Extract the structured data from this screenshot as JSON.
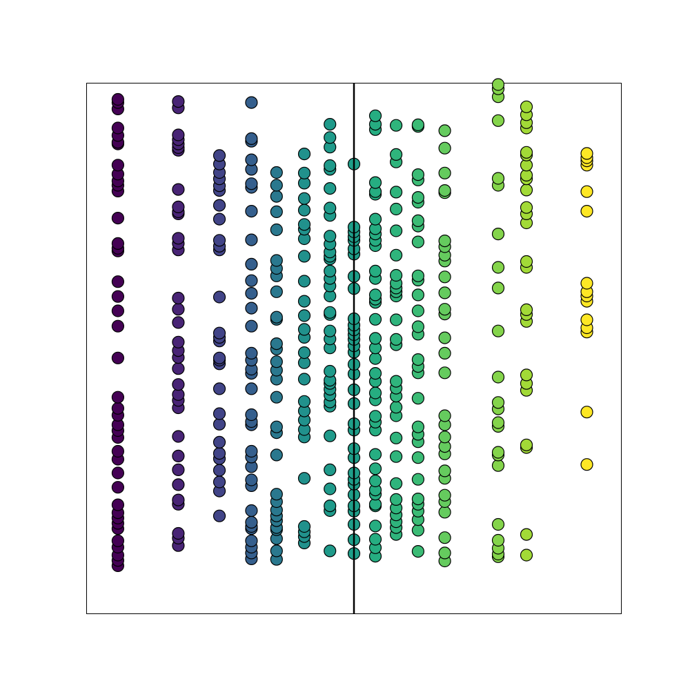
{
  "chart_data": {
    "type": "scatter",
    "title": "",
    "xlabel": "",
    "ylabel": "",
    "xticks": "none",
    "yticks": "none",
    "grid": false,
    "legend": "none",
    "xlim": [
      0,
      100
    ],
    "ylim": [
      0,
      100
    ],
    "colormap": "viridis",
    "vertical_line": {
      "x": 50,
      "color": "#000000"
    },
    "columns": [
      {
        "x": 5.8,
        "y": [
          9.0,
          10.0,
          11.0,
          12.5,
          13.7,
          16.0,
          17.0,
          18.0,
          19.0,
          20.5,
          23.8,
          26.5,
          29.1,
          30.6,
          33.2,
          34.5,
          35.6,
          37.4,
          38.7,
          40.8,
          48.2,
          54.2,
          57.1,
          59.8,
          62.6,
          68.4,
          68.9,
          69.8,
          74.6,
          79.7,
          80.8,
          81.6,
          82.9,
          84.6,
          88.6,
          88.9,
          90.2,
          91.6,
          95.2,
          96.4,
          97.0
        ],
        "color": "#440154"
      },
      {
        "x": 17.1,
        "y": [
          12.8,
          14.2,
          15.1,
          20.6,
          21.4,
          24.3,
          27.1,
          29.7,
          33.4,
          38.8,
          40.2,
          41.3,
          43.2,
          46.2,
          48.3,
          49.6,
          51.2,
          54.9,
          57.4,
          59.5,
          68.6,
          69.8,
          70.8,
          75.4,
          75.8,
          76.7,
          80.0,
          87.4,
          87.9,
          88.6,
          89.4,
          90.3,
          95.4,
          96.6
        ],
        "color": "#482475"
      },
      {
        "x": 24.8,
        "y": [
          18.4,
          23.1,
          24.8,
          27.0,
          29.2,
          30.2,
          32.3,
          35.7,
          37.7,
          42.4,
          47.1,
          47.8,
          48.2,
          51.4,
          52.1,
          52.9,
          59.7,
          68.6,
          69.3,
          70.4,
          74.4,
          77.0,
          79.8,
          80.7,
          82.0,
          83.2,
          84.8,
          86.4
        ],
        "color": "#414487"
      },
      {
        "x": 30.8,
        "y": [
          10.3,
          11.4,
          12.5,
          13.7,
          16.0,
          16.4,
          17.2,
          19.4,
          24.1,
          25.2,
          27.7,
          29.5,
          30.6,
          35.6,
          36.2,
          37.5,
          42.4,
          45.3,
          46.1,
          47.8,
          49.1,
          54.2,
          57.6,
          60.4,
          62.8,
          65.9,
          70.5,
          75.9,
          80.4,
          81.1,
          83.8,
          85.6,
          89.1,
          89.6,
          96.4
        ],
        "color": "#355f8d"
      },
      {
        "x": 35.5,
        "y": [
          10.2,
          11.8,
          14.1,
          15.8,
          16.2,
          17.5,
          18.4,
          19.5,
          21.1,
          22.5,
          29.9,
          34.1,
          35.2,
          40.8,
          44.2,
          45.9,
          47.5,
          49.9,
          50.9,
          55.5,
          55.9,
          60.7,
          63.7,
          65.1,
          66.6,
          72.4,
          75.8,
          78.7,
          80.8,
          83.2
        ],
        "color": "#2a788e"
      },
      {
        "x": 40.7,
        "y": [
          13.3,
          14.5,
          15.4,
          16.4,
          25.5,
          33.3,
          34.7,
          36.5,
          38.2,
          40.0,
          44.2,
          47.3,
          49.2,
          52.1,
          53.6,
          56.2,
          58.9,
          62.7,
          67.4,
          70.7,
          72.5,
          73.4,
          76.1,
          78.3,
          81.2,
          83.1,
          86.7
        ],
        "color": "#21918c"
      },
      {
        "x": 45.5,
        "y": [
          11.8,
          19.4,
          20.3,
          23.5,
          27.1,
          33.5,
          39.1,
          39.9,
          41.2,
          42.3,
          43.4,
          44.0,
          45.7,
          50.1,
          51.8,
          53.3,
          56.4,
          56.8,
          59.9,
          61.8,
          63.2,
          64.6,
          66.9,
          67.4,
          68.2,
          69.7,
          71.2,
          75.1,
          76.5,
          80.2,
          83.8,
          84.5,
          88.0,
          89.8,
          92.3
        ],
        "color": "#1f9a8a"
      },
      {
        "x": 50.0,
        "y": [
          11.3,
          13.9,
          16.8,
          19.3,
          20.3,
          22.4,
          24.4,
          25.3,
          26.5,
          29.4,
          31.1,
          34.6,
          35.8,
          39.6,
          42.2,
          45.2,
          47.0,
          49.3,
          50.5,
          51.7,
          52.6,
          53.5,
          54.4,
          55.6,
          61.3,
          63.6,
          67.8,
          68.8,
          70.4,
          71.1,
          72.0,
          72.9,
          84.8
        ],
        "color": "#1f9e89"
      },
      {
        "x": 54.0,
        "y": [
          10.8,
          12.4,
          14.0,
          16.5,
          20.3,
          20.6,
          22.5,
          23.3,
          25.0,
          27.3,
          30.0,
          34.6,
          36.1,
          37.2,
          40.3,
          41.6,
          43.8,
          45.3,
          48.1,
          50.1,
          51.9,
          55.5,
          58.7,
          59.3,
          60.1,
          63.2,
          64.6,
          69.4,
          70.4,
          71.6,
          72.6,
          74.4,
          79.1,
          79.6,
          81.3,
          91.3,
          92.3,
          93.9
        ],
        "color": "#26ad81"
      },
      {
        "x": 57.9,
        "y": [
          14.9,
          16.2,
          17.3,
          18.6,
          19.9,
          21.5,
          24.5,
          29.6,
          33.1,
          37.3,
          38.9,
          41.0,
          42.5,
          43.8,
          50.7,
          51.7,
          55.4,
          59.9,
          60.7,
          61.4,
          62.3,
          63.8,
          67.6,
          72.2,
          76.3,
          79.5,
          85.2,
          86.6,
          92.1
        ],
        "color": "#2fb47c"
      },
      {
        "x": 62.0,
        "y": [
          11.7,
          15.7,
          17.7,
          19.3,
          20.6,
          21.6,
          25.3,
          29.4,
          32.4,
          33.8,
          35.2,
          40.6,
          45.4,
          46.6,
          47.9,
          52.7,
          54.1,
          57.1,
          60.1,
          62.9,
          63.7,
          70.1,
          73.1,
          74.1,
          77.6,
          78.5,
          81.8,
          82.8,
          91.9,
          92.2
        ],
        "color": "#3bbb75"
      },
      {
        "x": 67.0,
        "y": [
          9.9,
          11.4,
          14.3,
          19.1,
          21.1,
          22.3,
          25.5,
          26.9,
          30.1,
          31.5,
          33.3,
          35.6,
          37.3,
          45.4,
          49.1,
          52.0,
          56.5,
          57.4,
          60.5,
          63.5,
          66.5,
          67.6,
          69.2,
          70.3,
          79.4,
          79.8,
          83.1,
          87.8,
          91.1
        ],
        "color": "#65cb5e"
      },
      {
        "x": 77.0,
        "y": [
          10.7,
          11.2,
          12.3,
          13.8,
          16.8,
          27.9,
          29.9,
          30.4,
          35.3,
          36.0,
          38.6,
          39.8,
          44.6,
          53.3,
          61.4,
          65.3,
          71.6,
          80.8,
          82.1,
          93.0,
          97.5,
          99.0,
          99.8
        ],
        "color": "#84d44b"
      },
      {
        "x": 82.3,
        "y": [
          11.0,
          14.9,
          31.3,
          31.8,
          42.1,
          43.4,
          45.0,
          55.1,
          56.4,
          57.3,
          65.3,
          66.4,
          73.7,
          75.4,
          76.6,
          79.9,
          82.0,
          82.7,
          84.6,
          86.5,
          87.0,
          91.6,
          92.6,
          94.1,
          95.6
        ],
        "color": "#a2da37"
      },
      {
        "x": 93.6,
        "y": [
          28.1,
          38.0,
          53.1,
          53.9,
          55.4,
          58.9,
          59.9,
          60.7,
          62.3,
          75.9,
          79.6,
          84.6,
          85.4,
          86.0,
          86.8
        ],
        "color": "#fde725"
      }
    ]
  }
}
